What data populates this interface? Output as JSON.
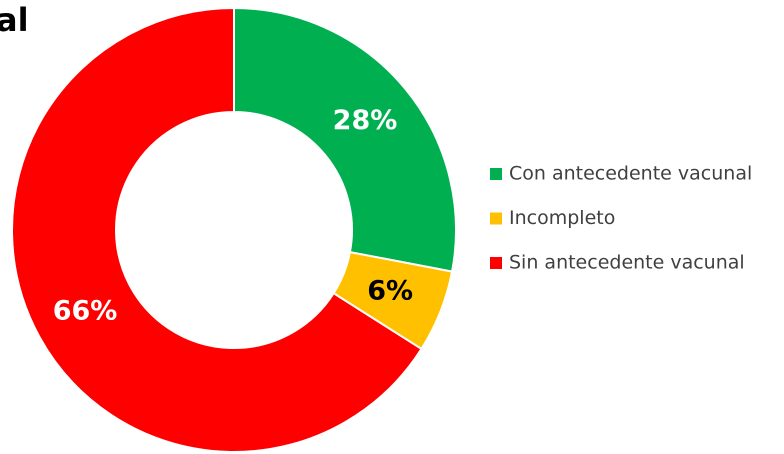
{
  "chart_data": {
    "type": "donut",
    "title": "al",
    "categories": [
      "Con antecedente vacunal",
      "Incompleto",
      "Sin antecedente vacunal"
    ],
    "values": [
      28,
      6,
      66
    ],
    "value_labels": [
      "28%",
      "6%",
      "66%"
    ],
    "colors": [
      "#00b050",
      "#ffc000",
      "#ff0000"
    ],
    "label_colors": [
      "#ffffff",
      "#000000",
      "#ffffff"
    ],
    "legend": "right"
  }
}
